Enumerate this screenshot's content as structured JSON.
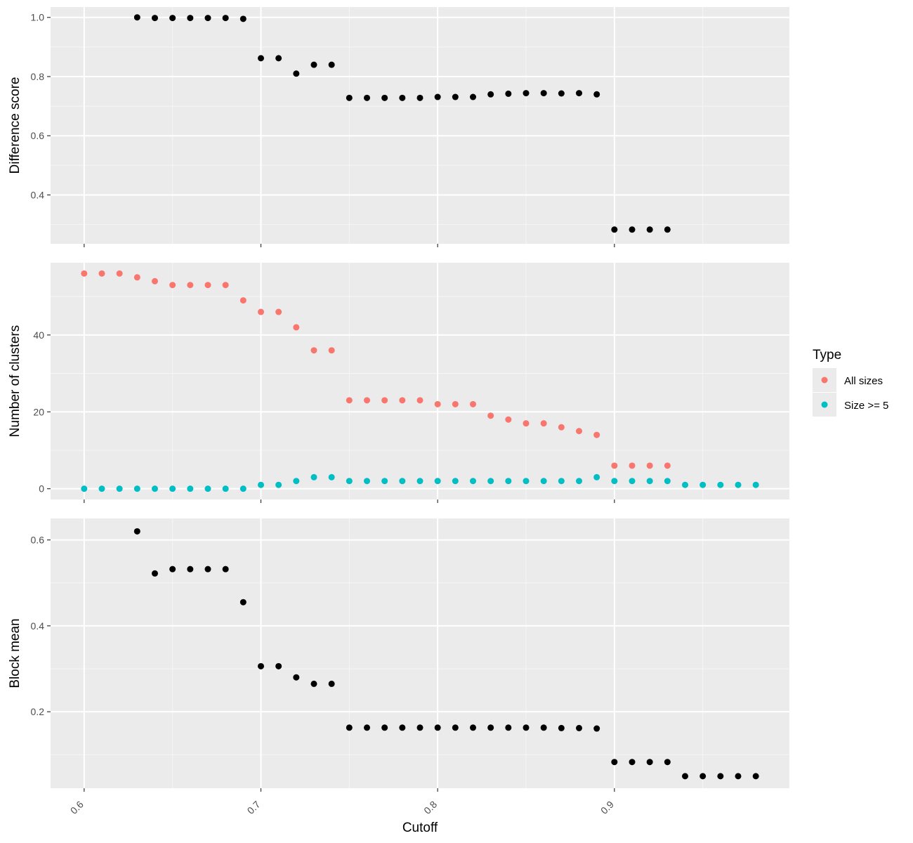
{
  "chart_data": {
    "type": "scatter",
    "xlabel": "Cutoff",
    "x_ticks": [
      "0.6",
      "0.7",
      "0.8",
      "0.9"
    ],
    "x_range": [
      0.581,
      0.999
    ],
    "legend": {
      "title": "Type",
      "placement": "right",
      "entries": [
        {
          "label": "All sizes",
          "color": "#F8766D"
        },
        {
          "label": "Size >= 5",
          "color": "#00BFC4"
        }
      ]
    },
    "panels": [
      {
        "ylabel": "Difference score",
        "y_ticks": [
          "0.4",
          "0.6",
          "0.8",
          "1.0"
        ],
        "y_range": [
          0.235,
          1.035
        ],
        "series": [
          {
            "color": "#000000",
            "x": [
              0.63,
              0.64,
              0.65,
              0.66,
              0.67,
              0.68,
              0.69,
              0.7,
              0.71,
              0.72,
              0.73,
              0.74,
              0.75,
              0.76,
              0.77,
              0.78,
              0.79,
              0.8,
              0.81,
              0.82,
              0.83,
              0.84,
              0.85,
              0.86,
              0.87,
              0.88,
              0.89,
              0.9,
              0.91,
              0.92,
              0.93
            ],
            "y": [
              1.0,
              0.998,
              0.998,
              0.998,
              0.998,
              0.998,
              0.995,
              0.862,
              0.862,
              0.81,
              0.84,
              0.84,
              0.728,
              0.728,
              0.728,
              0.728,
              0.728,
              0.731,
              0.731,
              0.731,
              0.74,
              0.742,
              0.744,
              0.744,
              0.743,
              0.744,
              0.74,
              0.283,
              0.283,
              0.283,
              0.283
            ]
          }
        ]
      },
      {
        "ylabel": "Number of clusters",
        "y_ticks": [
          "0",
          "20",
          "40"
        ],
        "y_range": [
          -2.8,
          58.8
        ],
        "series": [
          {
            "name": "All sizes",
            "color": "#F8766D",
            "x": [
              0.6,
              0.61,
              0.62,
              0.63,
              0.64,
              0.65,
              0.66,
              0.67,
              0.68,
              0.69,
              0.7,
              0.71,
              0.72,
              0.73,
              0.74,
              0.75,
              0.76,
              0.77,
              0.78,
              0.79,
              0.8,
              0.81,
              0.82,
              0.83,
              0.84,
              0.85,
              0.86,
              0.87,
              0.88,
              0.89,
              0.9,
              0.91,
              0.92,
              0.93
            ],
            "y": [
              56,
              56,
              56,
              55,
              54,
              53,
              53,
              53,
              53,
              49,
              46,
              46,
              42,
              36,
              36,
              23,
              23,
              23,
              23,
              23,
              22,
              22,
              22,
              19,
              18,
              17,
              17,
              16,
              15,
              14,
              6,
              6,
              6,
              6
            ]
          },
          {
            "name": "Size >= 5",
            "color": "#00BFC4",
            "x": [
              0.6,
              0.61,
              0.62,
              0.63,
              0.64,
              0.65,
              0.66,
              0.67,
              0.68,
              0.69,
              0.7,
              0.71,
              0.72,
              0.73,
              0.74,
              0.75,
              0.76,
              0.77,
              0.78,
              0.79,
              0.8,
              0.81,
              0.82,
              0.83,
              0.84,
              0.85,
              0.86,
              0.87,
              0.88,
              0.89,
              0.9,
              0.91,
              0.92,
              0.93,
              0.94,
              0.95,
              0.96,
              0.97,
              0.98
            ],
            "y": [
              0,
              0,
              0,
              0,
              0,
              0,
              0,
              0,
              0,
              0,
              1,
              1,
              2,
              3,
              3,
              2,
              2,
              2,
              2,
              2,
              2,
              2,
              2,
              2,
              2,
              2,
              2,
              2,
              2,
              3,
              2,
              2,
              2,
              2,
              1,
              1,
              1,
              1,
              1
            ]
          }
        ]
      },
      {
        "ylabel": "Block mean",
        "y_ticks": [
          "0.2",
          "0.4",
          "0.6"
        ],
        "y_range": [
          0.022,
          0.65
        ],
        "series": [
          {
            "color": "#000000",
            "x": [
              0.63,
              0.64,
              0.65,
              0.66,
              0.67,
              0.68,
              0.69,
              0.7,
              0.71,
              0.72,
              0.73,
              0.74,
              0.75,
              0.76,
              0.77,
              0.78,
              0.79,
              0.8,
              0.81,
              0.82,
              0.83,
              0.84,
              0.85,
              0.86,
              0.87,
              0.88,
              0.89,
              0.9,
              0.91,
              0.92,
              0.93,
              0.94,
              0.95,
              0.96,
              0.97,
              0.98
            ],
            "y": [
              0.62,
              0.522,
              0.532,
              0.532,
              0.532,
              0.532,
              0.455,
              0.306,
              0.306,
              0.28,
              0.265,
              0.265,
              0.163,
              0.163,
              0.163,
              0.163,
              0.163,
              0.163,
              0.163,
              0.163,
              0.163,
              0.163,
              0.163,
              0.163,
              0.162,
              0.162,
              0.161,
              0.083,
              0.083,
              0.083,
              0.083,
              0.05,
              0.05,
              0.05,
              0.05,
              0.05
            ]
          }
        ]
      }
    ]
  }
}
